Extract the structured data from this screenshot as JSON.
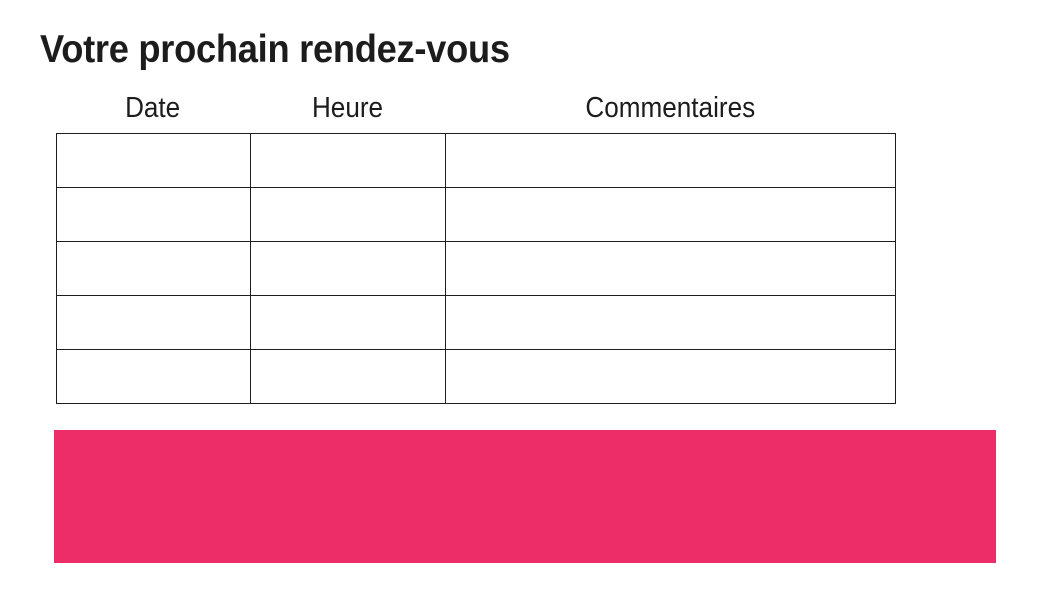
{
  "page": {
    "title": "Votre prochain rendez-vous",
    "background": "#FFFFFF"
  },
  "table": {
    "headers": [
      "Date",
      "Heure",
      "Commentaires"
    ],
    "row_count": 5,
    "column_count": 3,
    "rows": [
      [
        "",
        "",
        ""
      ],
      [
        "",
        "",
        ""
      ],
      [
        "",
        "",
        ""
      ],
      [
        "",
        "",
        ""
      ],
      [
        "",
        "",
        ""
      ]
    ]
  },
  "banner": {
    "text": ""
  },
  "colors": {
    "accent_pink": "#ED2D67",
    "text": "#1C1C1C",
    "table_border": "#1F1F1F"
  }
}
